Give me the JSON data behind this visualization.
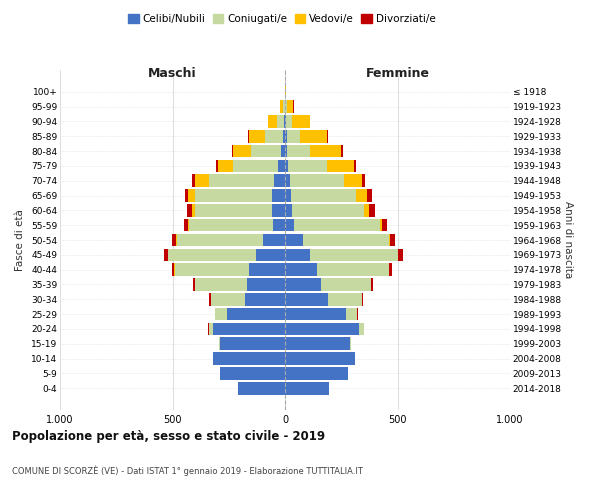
{
  "age_groups": [
    "0-4",
    "5-9",
    "10-14",
    "15-19",
    "20-24",
    "25-29",
    "30-34",
    "35-39",
    "40-44",
    "45-49",
    "50-54",
    "55-59",
    "60-64",
    "65-69",
    "70-74",
    "75-79",
    "80-84",
    "85-89",
    "90-94",
    "95-99",
    "100+"
  ],
  "birth_years": [
    "2014-2018",
    "2009-2013",
    "2004-2008",
    "1999-2003",
    "1994-1998",
    "1989-1993",
    "1984-1988",
    "1979-1983",
    "1974-1978",
    "1969-1973",
    "1964-1968",
    "1959-1963",
    "1954-1958",
    "1949-1953",
    "1944-1948",
    "1939-1943",
    "1934-1938",
    "1929-1933",
    "1924-1928",
    "1919-1923",
    "≤ 1918"
  ],
  "colors": {
    "celibe": "#4472c4",
    "coniugato": "#c5d9a0",
    "vedovo": "#ffc000",
    "divorziato": "#c00000"
  },
  "maschi": {
    "celibe": [
      210,
      290,
      320,
      290,
      320,
      260,
      180,
      170,
      160,
      130,
      100,
      55,
      60,
      60,
      50,
      30,
      20,
      10,
      5,
      2,
      0
    ],
    "coniugato": [
      0,
      0,
      0,
      5,
      20,
      50,
      150,
      230,
      330,
      390,
      380,
      370,
      340,
      340,
      290,
      200,
      130,
      80,
      30,
      5,
      0
    ],
    "vedovo": [
      0,
      0,
      0,
      0,
      0,
      0,
      1,
      1,
      2,
      2,
      3,
      5,
      15,
      30,
      60,
      70,
      80,
      70,
      40,
      15,
      2
    ],
    "divorziato": [
      0,
      0,
      0,
      0,
      2,
      2,
      5,
      8,
      10,
      15,
      20,
      20,
      20,
      15,
      15,
      8,
      5,
      5,
      2,
      0,
      0
    ]
  },
  "femmine": {
    "nubile": [
      195,
      280,
      310,
      290,
      330,
      270,
      190,
      160,
      140,
      110,
      80,
      40,
      30,
      25,
      20,
      15,
      10,
      8,
      5,
      2,
      0
    ],
    "coniugata": [
      0,
      0,
      0,
      5,
      20,
      50,
      150,
      220,
      320,
      390,
      380,
      380,
      320,
      290,
      240,
      170,
      100,
      60,
      25,
      5,
      0
    ],
    "vedova": [
      0,
      0,
      0,
      0,
      1,
      1,
      1,
      1,
      2,
      3,
      5,
      10,
      25,
      50,
      80,
      120,
      140,
      120,
      80,
      30,
      5
    ],
    "divorziata": [
      0,
      0,
      0,
      0,
      2,
      3,
      5,
      10,
      15,
      20,
      25,
      25,
      25,
      20,
      15,
      10,
      8,
      5,
      2,
      1,
      0
    ]
  },
  "title": "Popolazione per età, sesso e stato civile - 2019",
  "subtitle": "COMUNE DI SCORZÈ (VE) - Dati ISTAT 1° gennaio 2019 - Elaborazione TUTTITALIA.IT",
  "xlabel_left": "Maschi",
  "xlabel_right": "Femmine",
  "ylabel_left": "Fasce di età",
  "ylabel_right": "Anni di nascita",
  "xlim": 1000,
  "bg_color": "#ffffff",
  "grid_color": "#d0d0d0",
  "bar_height": 0.85
}
